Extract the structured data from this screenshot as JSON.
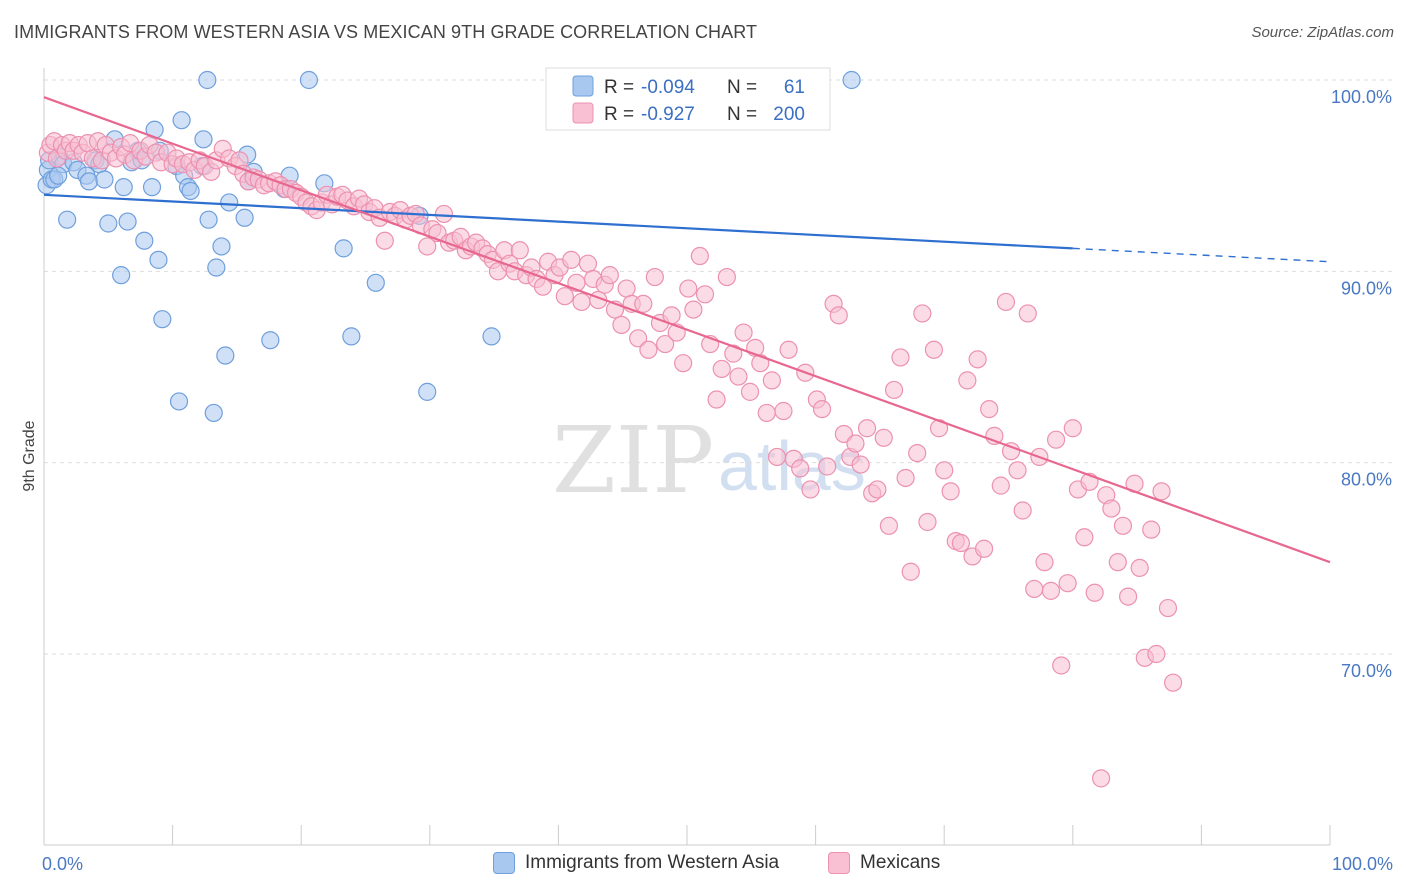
{
  "header": {
    "title": "IMMIGRANTS FROM WESTERN ASIA VS MEXICAN 9TH GRADE CORRELATION CHART",
    "source": "Source: ZipAtlas.com"
  },
  "watermark": {
    "zip": "ZIP",
    "atlas": "atlas"
  },
  "legend_box": {
    "rows": [
      {
        "r_label": "R =",
        "r_value": "-0.094",
        "n_label": "N =",
        "n_value": "61"
      },
      {
        "r_label": "R =",
        "r_value": "-0.927",
        "n_label": "N =",
        "n_value": "200"
      }
    ]
  },
  "bottom_legend": {
    "series1": "Immigrants from Western Asia",
    "series2": "Mexicans"
  },
  "colors": {
    "blue_fill": "#a9c8f0",
    "blue_stroke": "#6f9fdc",
    "blue_line": "#2e6fcf",
    "pink_fill": "#f8c0d2",
    "pink_stroke": "#ec91b0",
    "pink_line": "#e8678f",
    "tick_text": "#4a78c2",
    "grid": "#dddddd"
  },
  "chart_data": {
    "type": "scatter",
    "title": "IMMIGRANTS FROM WESTERN ASIA VS MEXICAN 9TH GRADE CORRELATION CHART",
    "xlabel": "",
    "ylabel": "9th Grade",
    "xlim": [
      0,
      100
    ],
    "ylim": [
      60.5,
      101.5
    ],
    "x_ticks": [
      0,
      100
    ],
    "x_tick_labels": [
      "0.0%",
      "100.0%"
    ],
    "y_ticks": [
      70,
      80,
      90,
      100
    ],
    "y_tick_labels": [
      "70.0%",
      "80.0%",
      "90.0%",
      "100.0%"
    ],
    "series": [
      {
        "name": "Immigrants from Western Asia",
        "color": "blue",
        "r": -0.094,
        "n": 61,
        "trend": {
          "x_start": 0,
          "y_start": 94.0,
          "x_solid_end": 80,
          "y_solid_end": 91.2,
          "x_dash_end": 100,
          "y_dash_end": 90.5
        },
        "points": [
          [
            0.2,
            94.5
          ],
          [
            0.3,
            95.3
          ],
          [
            0.4,
            95.8
          ],
          [
            0.6,
            94.8
          ],
          [
            0.8,
            94.8
          ],
          [
            1.2,
            96.0
          ],
          [
            1.5,
            95.6
          ],
          [
            1.8,
            92.7
          ],
          [
            2.3,
            95.7
          ],
          [
            2.6,
            95.3
          ],
          [
            3.3,
            95.0
          ],
          [
            3.5,
            94.7
          ],
          [
            4.0,
            95.8
          ],
          [
            4.3,
            95.6
          ],
          [
            4.7,
            94.8
          ],
          [
            5.0,
            92.5
          ],
          [
            5.5,
            96.9
          ],
          [
            6.0,
            89.8
          ],
          [
            6.2,
            94.4
          ],
          [
            6.5,
            92.6
          ],
          [
            6.8,
            95.7
          ],
          [
            7.3,
            96.3
          ],
          [
            7.6,
            95.8
          ],
          [
            7.8,
            91.6
          ],
          [
            8.4,
            94.4
          ],
          [
            8.6,
            97.4
          ],
          [
            8.9,
            90.6
          ],
          [
            9.0,
            96.3
          ],
          [
            9.2,
            87.5
          ],
          [
            10.3,
            95.5
          ],
          [
            10.5,
            83.2
          ],
          [
            10.7,
            97.9
          ],
          [
            10.9,
            95.0
          ],
          [
            11.2,
            94.4
          ],
          [
            11.4,
            94.2
          ],
          [
            12.3,
            95.5
          ],
          [
            12.4,
            96.9
          ],
          [
            12.7,
            100.0
          ],
          [
            12.8,
            92.7
          ],
          [
            13.2,
            82.6
          ],
          [
            13.4,
            90.2
          ],
          [
            13.8,
            91.3
          ],
          [
            14.1,
            85.6
          ],
          [
            14.4,
            93.6
          ],
          [
            15.6,
            92.8
          ],
          [
            15.8,
            96.1
          ],
          [
            15.9,
            94.7
          ],
          [
            16.3,
            95.2
          ],
          [
            17.6,
            86.4
          ],
          [
            18.7,
            94.3
          ],
          [
            19.1,
            95.0
          ],
          [
            20.6,
            100.0
          ],
          [
            21.8,
            94.6
          ],
          [
            23.3,
            91.2
          ],
          [
            23.9,
            86.6
          ],
          [
            25.8,
            89.4
          ],
          [
            29.2,
            92.9
          ],
          [
            29.8,
            83.7
          ],
          [
            34.8,
            86.6
          ],
          [
            62.8,
            100.0
          ],
          [
            1.1,
            95.0
          ]
        ]
      },
      {
        "name": "Mexicans",
        "color": "pink",
        "r": -0.927,
        "n": 200,
        "trend": {
          "x_start": 0,
          "y_start": 99.1,
          "x_end": 100,
          "y_end": 74.8
        },
        "points": [
          [
            0.3,
            96.2
          ],
          [
            0.5,
            96.6
          ],
          [
            0.8,
            96.8
          ],
          [
            1.0,
            95.9
          ],
          [
            1.4,
            96.6
          ],
          [
            1.7,
            96.3
          ],
          [
            2.0,
            96.7
          ],
          [
            2.3,
            96.3
          ],
          [
            2.7,
            96.6
          ],
          [
            3.0,
            96.2
          ],
          [
            3.4,
            96.7
          ],
          [
            3.8,
            95.9
          ],
          [
            4.2,
            96.8
          ],
          [
            4.5,
            95.8
          ],
          [
            4.8,
            96.6
          ],
          [
            5.2,
            96.2
          ],
          [
            5.6,
            95.9
          ],
          [
            6.0,
            96.5
          ],
          [
            6.3,
            96.1
          ],
          [
            6.7,
            96.7
          ],
          [
            7.0,
            95.8
          ],
          [
            7.5,
            96.3
          ],
          [
            7.9,
            96.0
          ],
          [
            8.2,
            96.6
          ],
          [
            8.7,
            96.2
          ],
          [
            9.1,
            95.7
          ],
          [
            9.6,
            96.2
          ],
          [
            10.0,
            95.6
          ],
          [
            10.3,
            95.9
          ],
          [
            10.8,
            95.6
          ],
          [
            11.3,
            95.7
          ],
          [
            11.7,
            95.3
          ],
          [
            12.1,
            95.8
          ],
          [
            12.5,
            95.5
          ],
          [
            13.0,
            95.2
          ],
          [
            13.4,
            95.8
          ],
          [
            13.9,
            96.4
          ],
          [
            14.4,
            95.9
          ],
          [
            14.9,
            95.5
          ],
          [
            15.2,
            95.8
          ],
          [
            15.5,
            95.1
          ],
          [
            15.9,
            94.7
          ],
          [
            16.3,
            94.9
          ],
          [
            16.7,
            94.8
          ],
          [
            17.1,
            94.5
          ],
          [
            17.5,
            94.6
          ],
          [
            18.0,
            94.7
          ],
          [
            18.4,
            94.5
          ],
          [
            18.8,
            94.3
          ],
          [
            19.2,
            94.3
          ],
          [
            19.6,
            94.1
          ],
          [
            20.0,
            93.9
          ],
          [
            20.4,
            93.6
          ],
          [
            20.8,
            93.4
          ],
          [
            21.2,
            93.2
          ],
          [
            21.6,
            93.6
          ],
          [
            22.0,
            94.0
          ],
          [
            22.4,
            93.5
          ],
          [
            22.8,
            93.9
          ],
          [
            23.2,
            94.0
          ],
          [
            23.6,
            93.7
          ],
          [
            24.1,
            93.4
          ],
          [
            24.5,
            93.8
          ],
          [
            24.9,
            93.5
          ],
          [
            25.3,
            93.1
          ],
          [
            25.7,
            93.3
          ],
          [
            26.1,
            92.8
          ],
          [
            26.5,
            91.6
          ],
          [
            26.9,
            93.1
          ],
          [
            27.3,
            92.9
          ],
          [
            27.7,
            93.2
          ],
          [
            28.1,
            92.7
          ],
          [
            28.5,
            92.9
          ],
          [
            28.9,
            93.0
          ],
          [
            29.3,
            92.4
          ],
          [
            29.8,
            91.3
          ],
          [
            30.2,
            92.2
          ],
          [
            30.6,
            92.0
          ],
          [
            31.1,
            93.0
          ],
          [
            31.5,
            91.5
          ],
          [
            31.9,
            91.6
          ],
          [
            32.4,
            91.8
          ],
          [
            32.8,
            91.1
          ],
          [
            33.2,
            91.3
          ],
          [
            33.6,
            91.5
          ],
          [
            34.1,
            91.2
          ],
          [
            34.5,
            90.9
          ],
          [
            34.9,
            90.6
          ],
          [
            35.3,
            90.0
          ],
          [
            35.8,
            91.1
          ],
          [
            36.2,
            90.4
          ],
          [
            36.6,
            90.0
          ],
          [
            37.0,
            91.1
          ],
          [
            37.5,
            89.8
          ],
          [
            37.9,
            90.2
          ],
          [
            38.3,
            89.6
          ],
          [
            38.8,
            89.2
          ],
          [
            39.2,
            90.5
          ],
          [
            39.7,
            89.8
          ],
          [
            40.1,
            90.2
          ],
          [
            40.5,
            88.7
          ],
          [
            41.0,
            90.6
          ],
          [
            41.4,
            89.4
          ],
          [
            41.8,
            88.4
          ],
          [
            42.3,
            90.4
          ],
          [
            42.7,
            89.6
          ],
          [
            43.1,
            88.5
          ],
          [
            43.6,
            89.3
          ],
          [
            44.0,
            89.8
          ],
          [
            44.4,
            88.0
          ],
          [
            44.9,
            87.2
          ],
          [
            45.3,
            89.1
          ],
          [
            45.7,
            88.3
          ],
          [
            46.2,
            86.5
          ],
          [
            46.6,
            88.3
          ],
          [
            47.0,
            85.9
          ],
          [
            47.5,
            89.7
          ],
          [
            47.9,
            87.3
          ],
          [
            48.3,
            86.2
          ],
          [
            48.8,
            87.7
          ],
          [
            49.2,
            86.8
          ],
          [
            49.7,
            85.2
          ],
          [
            50.1,
            89.1
          ],
          [
            50.5,
            88.0
          ],
          [
            51.0,
            90.8
          ],
          [
            51.4,
            88.8
          ],
          [
            51.8,
            86.2
          ],
          [
            52.3,
            83.3
          ],
          [
            52.7,
            84.9
          ],
          [
            53.1,
            89.7
          ],
          [
            53.6,
            85.7
          ],
          [
            54.0,
            84.5
          ],
          [
            54.4,
            86.8
          ],
          [
            54.9,
            83.7
          ],
          [
            55.3,
            86.0
          ],
          [
            55.7,
            85.2
          ],
          [
            56.2,
            82.6
          ],
          [
            56.6,
            84.3
          ],
          [
            57.0,
            80.3
          ],
          [
            57.5,
            82.7
          ],
          [
            57.9,
            85.9
          ],
          [
            58.3,
            80.2
          ],
          [
            58.8,
            79.7
          ],
          [
            59.2,
            84.7
          ],
          [
            59.6,
            78.6
          ],
          [
            60.1,
            83.3
          ],
          [
            60.5,
            82.8
          ],
          [
            60.9,
            79.8
          ],
          [
            61.4,
            88.3
          ],
          [
            61.8,
            87.7
          ],
          [
            62.2,
            81.5
          ],
          [
            62.7,
            80.3
          ],
          [
            63.1,
            81.0
          ],
          [
            63.5,
            79.9
          ],
          [
            64.0,
            81.8
          ],
          [
            64.4,
            78.4
          ],
          [
            64.8,
            78.6
          ],
          [
            65.3,
            81.3
          ],
          [
            65.7,
            76.7
          ],
          [
            66.1,
            83.8
          ],
          [
            66.6,
            85.5
          ],
          [
            67.0,
            79.2
          ],
          [
            67.4,
            74.3
          ],
          [
            67.9,
            80.5
          ],
          [
            68.3,
            87.8
          ],
          [
            68.7,
            76.9
          ],
          [
            69.2,
            85.9
          ],
          [
            69.6,
            81.8
          ],
          [
            70.0,
            79.6
          ],
          [
            70.5,
            78.5
          ],
          [
            70.9,
            75.9
          ],
          [
            71.3,
            75.8
          ],
          [
            71.8,
            84.3
          ],
          [
            72.2,
            75.1
          ],
          [
            72.6,
            85.4
          ],
          [
            73.1,
            75.5
          ],
          [
            73.5,
            82.8
          ],
          [
            73.9,
            81.4
          ],
          [
            74.4,
            78.8
          ],
          [
            74.8,
            88.4
          ],
          [
            75.2,
            80.6
          ],
          [
            75.7,
            79.6
          ],
          [
            76.1,
            77.5
          ],
          [
            76.5,
            87.8
          ],
          [
            77.0,
            73.4
          ],
          [
            77.4,
            80.3
          ],
          [
            77.8,
            74.8
          ],
          [
            78.3,
            73.3
          ],
          [
            78.7,
            81.2
          ],
          [
            79.1,
            69.4
          ],
          [
            79.6,
            73.7
          ],
          [
            80.0,
            81.8
          ],
          [
            80.4,
            78.6
          ],
          [
            80.9,
            76.1
          ],
          [
            81.3,
            79.0
          ],
          [
            81.7,
            73.2
          ],
          [
            82.2,
            63.5
          ],
          [
            82.6,
            78.3
          ],
          [
            83.0,
            77.6
          ],
          [
            83.5,
            74.8
          ],
          [
            83.9,
            76.7
          ],
          [
            84.3,
            73.0
          ],
          [
            84.8,
            78.9
          ],
          [
            85.2,
            74.5
          ],
          [
            85.6,
            69.8
          ],
          [
            86.1,
            76.5
          ],
          [
            86.5,
            70.0
          ],
          [
            86.9,
            78.5
          ],
          [
            87.4,
            72.4
          ],
          [
            87.8,
            68.5
          ]
        ]
      }
    ]
  }
}
